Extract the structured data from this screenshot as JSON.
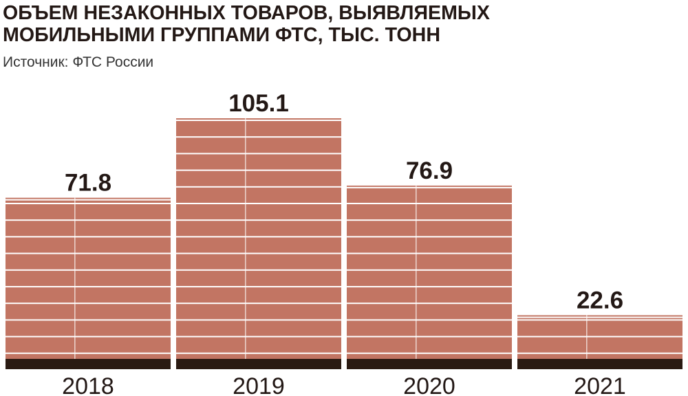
{
  "chart_data": {
    "type": "bar",
    "title": [
      "ОБЪЕМ НЕЗАКОННЫХ ТОВАРОВ, ВЫЯВЛЯЕМЫХ",
      "МОБИЛЬНЫМИ ГРУППАМИ ФТС, ТЫС. ТОНН"
    ],
    "subtitle": "Источник: ФТС России",
    "categories": [
      "2018",
      "2019",
      "2020",
      "2021"
    ],
    "values": [
      71.8,
      105.1,
      76.9,
      22.6
    ],
    "color": "#c27563"
  }
}
